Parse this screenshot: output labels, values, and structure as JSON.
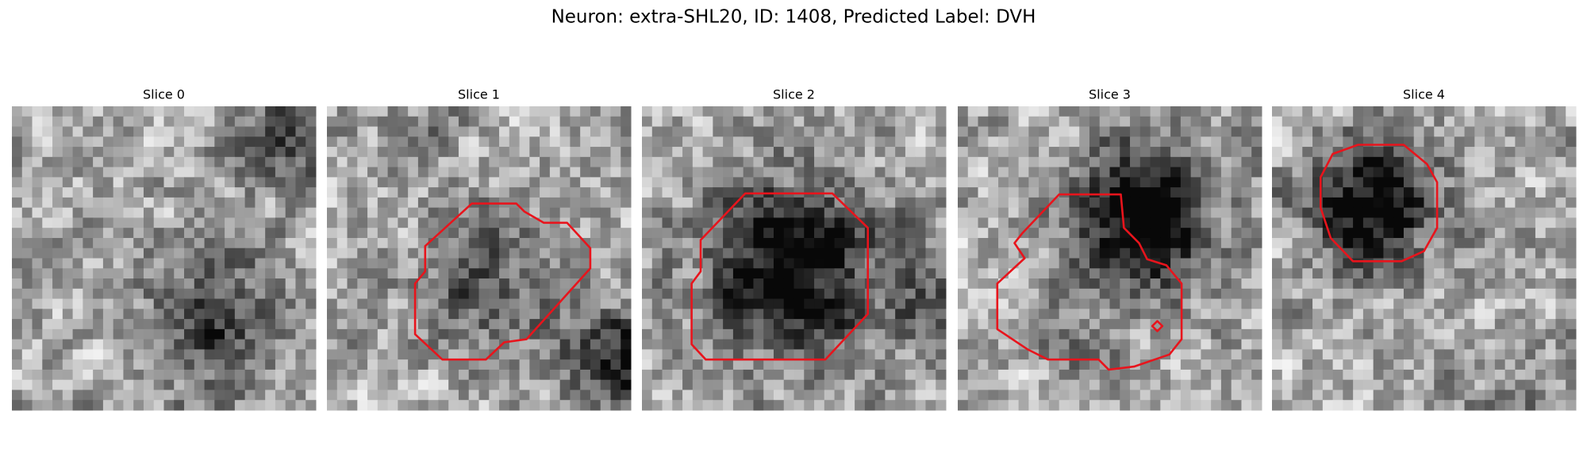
{
  "title": "Neuron: extra-SHL20, ID: 1408, Predicted Label: DVH",
  "panels": [
    {
      "title": "Slice 0"
    },
    {
      "title": "Slice 1"
    },
    {
      "title": "Slice 2"
    },
    {
      "title": "Slice 3"
    },
    {
      "title": "Slice 4"
    }
  ]
}
